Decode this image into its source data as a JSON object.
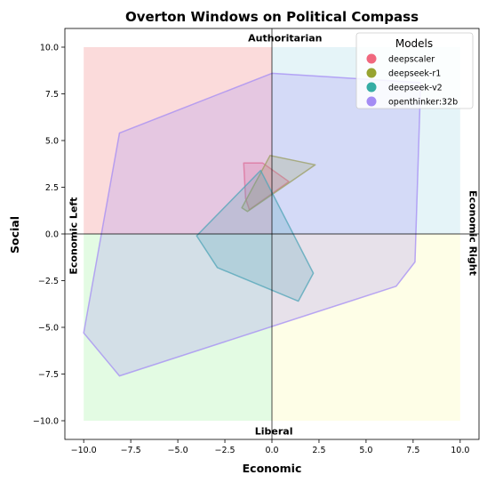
{
  "chart_data": {
    "type": "area",
    "title": "Overton Windows on Political Compass",
    "xlabel": "Economic",
    "ylabel": "Social",
    "xlim": [
      -11,
      11
    ],
    "ylim": [
      -11,
      11
    ],
    "xticks": [
      -10.0,
      -7.5,
      -5.0,
      -2.5,
      0.0,
      2.5,
      5.0,
      7.5,
      10.0
    ],
    "yticks": [
      -10.0,
      -7.5,
      -5.0,
      -2.5,
      0.0,
      2.5,
      5.0,
      7.5,
      10.0
    ],
    "tick_labels_x": [
      "−10.0",
      "−7.5",
      "−5.0",
      "−2.5",
      "0.0",
      "2.5",
      "5.0",
      "7.5",
      "10.0"
    ],
    "tick_labels_y": [
      "−10.0",
      "−7.5",
      "−5.0",
      "−2.5",
      "0.0",
      "2.5",
      "5.0",
      "7.5",
      "10.0"
    ],
    "grid": false,
    "quadrants": [
      {
        "x": [
          -10,
          0
        ],
        "y": [
          0,
          10
        ],
        "color": "#f4a6a6"
      },
      {
        "x": [
          0,
          10
        ],
        "y": [
          0,
          10
        ],
        "color": "#bfe3ee"
      },
      {
        "x": [
          -10,
          0
        ],
        "y": [
          -10,
          0
        ],
        "color": "#b9f5b9"
      },
      {
        "x": [
          0,
          10
        ],
        "y": [
          -10,
          0
        ],
        "color": "#fdfdc4"
      }
    ],
    "annotations": [
      {
        "text": "Authoritarian",
        "x": 0.7,
        "y": 10.45,
        "rotate": 0
      },
      {
        "text": "Liberal",
        "x": 0.1,
        "y": -10.6,
        "rotate": 0
      },
      {
        "text": "Economic Left",
        "x": -10.5,
        "y": -0.1,
        "rotate": -90
      },
      {
        "text": "Economic Right",
        "x": 10.65,
        "y": 0.05,
        "rotate": 90
      }
    ],
    "legend": {
      "title": "Models",
      "position": "top-right"
    },
    "series": [
      {
        "name": "deepscaler",
        "color": "#f0687e",
        "points": [
          [
            -1.5,
            3.8
          ],
          [
            -0.5,
            3.8
          ],
          [
            0.9,
            2.8
          ],
          [
            -1.2,
            1.3
          ],
          [
            -1.4,
            1.9
          ]
        ]
      },
      {
        "name": "deepseek-r1",
        "color": "#97a431",
        "points": [
          [
            -0.1,
            4.2
          ],
          [
            2.3,
            3.7
          ],
          [
            -1.3,
            1.2
          ],
          [
            -1.6,
            1.4
          ]
        ]
      },
      {
        "name": "deepseek-v2",
        "color": "#36ada4",
        "points": [
          [
            -0.6,
            3.4
          ],
          [
            2.2,
            -2.1
          ],
          [
            1.4,
            -3.6
          ],
          [
            -2.9,
            -1.8
          ],
          [
            -4.0,
            -0.1
          ]
        ]
      },
      {
        "name": "openthinker:32b",
        "color": "#a48cf4",
        "points": [
          [
            -8.1,
            5.4
          ],
          [
            0.0,
            8.6
          ],
          [
            7.9,
            8.1
          ],
          [
            7.6,
            -1.5
          ],
          [
            6.6,
            -2.8
          ],
          [
            -8.1,
            -7.6
          ],
          [
            -10.0,
            -5.3
          ]
        ]
      }
    ]
  }
}
